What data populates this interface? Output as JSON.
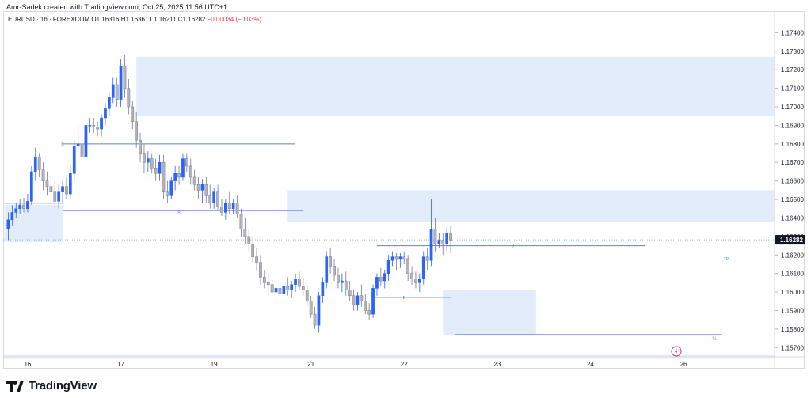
{
  "attribution": "Amr-Sadek created with TradingView.com, Oct 25, 2025 11:56 UTC+1",
  "legend": {
    "symbol": "EURUSD · 1h · FOREXCOM",
    "open": "O1.16316",
    "high": "H1.16361",
    "low": "L1.16211",
    "close": "C1.16282",
    "change": "−0.00034 (−0.03%)"
  },
  "brand": {
    "name": "TradingView",
    "logo_icon": "tradingview-logo-icon"
  },
  "colors": {
    "bull": "#2962ff",
    "bear": "#b2b5be",
    "zone": "#e3ecfb",
    "line": "#5b7fd6",
    "price_tag": "#131722"
  },
  "chart_data": {
    "type": "candlestick",
    "ylim": [
      1.1565,
      1.175
    ],
    "price_ticks": [
      "1.17400",
      "1.17300",
      "1.17200",
      "1.17100",
      "1.17000",
      "1.16900",
      "1.16800",
      "1.16700",
      "1.16600",
      "1.16500",
      "1.16400",
      "1.16300",
      "1.16200",
      "1.16100",
      "1.16000",
      "1.15900",
      "1.15800",
      "1.15700"
    ],
    "date_ticks": [
      {
        "label": "16",
        "index": 5
      },
      {
        "label": "17",
        "index": 29
      },
      {
        "label": "19",
        "index": 53
      },
      {
        "label": "21",
        "index": 78
      },
      {
        "label": "22",
        "index": 102
      },
      {
        "label": "23",
        "index": 126
      },
      {
        "label": "24",
        "index": 150
      },
      {
        "label": "26",
        "index": 174
      }
    ],
    "current_price": "1.16282",
    "annotations": [
      {
        "text": "B",
        "index": 14,
        "price": 1.168
      },
      {
        "text": "B",
        "index": 44,
        "price": 1.1643
      },
      {
        "text": "B",
        "index": 102,
        "price": 1.1597
      },
      {
        "text": "B",
        "index": 130,
        "price": 1.1625
      },
      {
        "text": "SL",
        "index": 182,
        "price": 1.1575
      },
      {
        "text": "TP",
        "index": 185,
        "price": 1.1618
      }
    ],
    "zones": [
      {
        "x0": -1,
        "x1": 14,
        "y0": 1.1647,
        "y1": 1.1627
      },
      {
        "x0": 33,
        "x1": 201,
        "y0": 1.1727,
        "y1": 1.1695
      },
      {
        "x0": 72,
        "x1": 201,
        "y0": 1.1655,
        "y1": 1.1638
      },
      {
        "x0": 112,
        "x1": 136,
        "y0": 1.1601,
        "y1": 1.1577
      },
      {
        "x0": -1,
        "x1": 201,
        "y0": 1.1566,
        "y1": 1.1564
      }
    ],
    "levels": [
      {
        "x0": 14,
        "x1": 74,
        "y": 1.168
      },
      {
        "x0": -1,
        "x1": 14,
        "y": 1.1648
      },
      {
        "x0": 14,
        "x1": 76,
        "y": 1.1644
      },
      {
        "x0": 94,
        "x1": 114,
        "y": 1.1597
      },
      {
        "x0": 95,
        "x1": 164,
        "y": 1.1625
      },
      {
        "x0": 115,
        "x1": 184,
        "y": 1.1577
      }
    ],
    "ohlc": [
      [
        1.1634,
        1.1643,
        1.1628,
        1.1639
      ],
      [
        1.1639,
        1.1647,
        1.1636,
        1.1643
      ],
      [
        1.1643,
        1.1648,
        1.164,
        1.1645
      ],
      [
        1.1645,
        1.165,
        1.1642,
        1.1647
      ],
      [
        1.1647,
        1.1651,
        1.1643,
        1.1645
      ],
      [
        1.1645,
        1.1653,
        1.1643,
        1.1649
      ],
      [
        1.1649,
        1.1668,
        1.1647,
        1.1665
      ],
      [
        1.1665,
        1.1678,
        1.166,
        1.1673
      ],
      [
        1.1673,
        1.1675,
        1.1662,
        1.1666
      ],
      [
        1.1666,
        1.167,
        1.1655,
        1.166
      ],
      [
        1.166,
        1.1665,
        1.1652,
        1.1657
      ],
      [
        1.1657,
        1.1664,
        1.1649,
        1.1654
      ],
      [
        1.1654,
        1.166,
        1.1645,
        1.1649
      ],
      [
        1.1649,
        1.1658,
        1.1645,
        1.1654
      ],
      [
        1.1654,
        1.166,
        1.1648,
        1.1657
      ],
      [
        1.1657,
        1.1662,
        1.165,
        1.1653
      ],
      [
        1.1653,
        1.1668,
        1.165,
        1.1664
      ],
      [
        1.1664,
        1.1682,
        1.166,
        1.1679
      ],
      [
        1.1679,
        1.169,
        1.167,
        1.168
      ],
      [
        1.168,
        1.1688,
        1.167,
        1.1673
      ],
      [
        1.1673,
        1.1694,
        1.167,
        1.169
      ],
      [
        1.169,
        1.1694,
        1.1686,
        1.169
      ],
      [
        1.169,
        1.1694,
        1.1686,
        1.1689
      ],
      [
        1.1689,
        1.1692,
        1.1684,
        1.1688
      ],
      [
        1.1688,
        1.1696,
        1.1684,
        1.1694
      ],
      [
        1.1694,
        1.1702,
        1.169,
        1.1699
      ],
      [
        1.1699,
        1.1708,
        1.1695,
        1.1705
      ],
      [
        1.1705,
        1.1716,
        1.1702,
        1.1712
      ],
      [
        1.1712,
        1.1716,
        1.17,
        1.1704
      ],
      [
        1.1704,
        1.1726,
        1.17,
        1.1722
      ],
      [
        1.1722,
        1.1728,
        1.1705,
        1.171
      ],
      [
        1.171,
        1.1715,
        1.1696,
        1.17
      ],
      [
        1.17,
        1.1703,
        1.1688,
        1.1692
      ],
      [
        1.1692,
        1.1697,
        1.1678,
        1.1682
      ],
      [
        1.1682,
        1.1686,
        1.167,
        1.1675
      ],
      [
        1.1675,
        1.168,
        1.1664,
        1.167
      ],
      [
        1.167,
        1.1676,
        1.1665,
        1.1672
      ],
      [
        1.1672,
        1.1675,
        1.1664,
        1.1667
      ],
      [
        1.1667,
        1.1672,
        1.166,
        1.1664
      ],
      [
        1.1664,
        1.1674,
        1.166,
        1.167
      ],
      [
        1.167,
        1.1674,
        1.165,
        1.1654
      ],
      [
        1.1654,
        1.166,
        1.1648,
        1.1652
      ],
      [
        1.1652,
        1.1662,
        1.165,
        1.166
      ],
      [
        1.166,
        1.1668,
        1.1655,
        1.1664
      ],
      [
        1.1664,
        1.1668,
        1.1658,
        1.1662
      ],
      [
        1.1662,
        1.1675,
        1.166,
        1.1672
      ],
      [
        1.1672,
        1.1675,
        1.1665,
        1.1668
      ],
      [
        1.1668,
        1.1672,
        1.1658,
        1.1662
      ],
      [
        1.1662,
        1.1666,
        1.1655,
        1.1658
      ],
      [
        1.1658,
        1.1662,
        1.165,
        1.1655
      ],
      [
        1.1655,
        1.1661,
        1.1648,
        1.1658
      ],
      [
        1.1658,
        1.1662,
        1.1648,
        1.1652
      ],
      [
        1.1652,
        1.1658,
        1.1645,
        1.1648
      ],
      [
        1.1648,
        1.1656,
        1.1645,
        1.1654
      ],
      [
        1.1654,
        1.1658,
        1.1644,
        1.1646
      ],
      [
        1.1646,
        1.165,
        1.1641,
        1.1643
      ],
      [
        1.1643,
        1.165,
        1.1639,
        1.1648
      ],
      [
        1.1648,
        1.1654,
        1.1642,
        1.1645
      ],
      [
        1.1645,
        1.165,
        1.1642,
        1.1648
      ],
      [
        1.1648,
        1.1652,
        1.164,
        1.1642
      ],
      [
        1.1642,
        1.1645,
        1.163,
        1.1634
      ],
      [
        1.1634,
        1.164,
        1.1626,
        1.163
      ],
      [
        1.163,
        1.1634,
        1.1622,
        1.1626
      ],
      [
        1.1626,
        1.163,
        1.1616,
        1.1619
      ],
      [
        1.1619,
        1.1624,
        1.1612,
        1.1616
      ],
      [
        1.1616,
        1.162,
        1.1604,
        1.1608
      ],
      [
        1.1608,
        1.1612,
        1.1602,
        1.1605
      ],
      [
        1.1605,
        1.161,
        1.1598,
        1.1604
      ],
      [
        1.1604,
        1.1608,
        1.1598,
        1.16
      ],
      [
        1.16,
        1.1604,
        1.1596,
        1.1602
      ],
      [
        1.1602,
        1.1606,
        1.1596,
        1.1599
      ],
      [
        1.1599,
        1.1605,
        1.1597,
        1.1603
      ],
      [
        1.1603,
        1.1608,
        1.1598,
        1.1601
      ],
      [
        1.1601,
        1.1606,
        1.1597,
        1.1604
      ],
      [
        1.1604,
        1.161,
        1.16,
        1.1607
      ],
      [
        1.1607,
        1.1611,
        1.1601,
        1.1603
      ],
      [
        1.1603,
        1.1608,
        1.1598,
        1.1601
      ],
      [
        1.1601,
        1.1604,
        1.1592,
        1.1595
      ],
      [
        1.1595,
        1.1598,
        1.1586,
        1.1588
      ],
      [
        1.1588,
        1.1592,
        1.158,
        1.1582
      ],
      [
        1.1582,
        1.16,
        1.1578,
        1.1598
      ],
      [
        1.1598,
        1.1608,
        1.1594,
        1.1605
      ],
      [
        1.1605,
        1.1622,
        1.1602,
        1.1619
      ],
      [
        1.1619,
        1.1624,
        1.161,
        1.1614
      ],
      [
        1.1614,
        1.1618,
        1.1606,
        1.1609
      ],
      [
        1.1609,
        1.1613,
        1.1602,
        1.1605
      ],
      [
        1.1605,
        1.161,
        1.16,
        1.1606
      ],
      [
        1.1606,
        1.1611,
        1.1598,
        1.1601
      ],
      [
        1.1601,
        1.1606,
        1.1595,
        1.1598
      ],
      [
        1.1598,
        1.1601,
        1.159,
        1.1593
      ],
      [
        1.1593,
        1.16,
        1.159,
        1.1598
      ],
      [
        1.1598,
        1.1604,
        1.1592,
        1.1595
      ],
      [
        1.1595,
        1.1599,
        1.1588,
        1.159
      ],
      [
        1.159,
        1.1594,
        1.1585,
        1.1588
      ],
      [
        1.1588,
        1.1604,
        1.1586,
        1.1602
      ],
      [
        1.1602,
        1.161,
        1.1598,
        1.1608
      ],
      [
        1.1608,
        1.1613,
        1.1603,
        1.1606
      ],
      [
        1.1606,
        1.1612,
        1.1602,
        1.161
      ],
      [
        1.161,
        1.162,
        1.1606,
        1.1617
      ],
      [
        1.1617,
        1.1622,
        1.1614,
        1.1619
      ],
      [
        1.1619,
        1.1621,
        1.1612,
        1.1618
      ],
      [
        1.1618,
        1.1621,
        1.1613,
        1.1619
      ],
      [
        1.1619,
        1.1622,
        1.1615,
        1.1618
      ],
      [
        1.1618,
        1.162,
        1.1606,
        1.161
      ],
      [
        1.161,
        1.1614,
        1.1604,
        1.1607
      ],
      [
        1.1607,
        1.1611,
        1.1602,
        1.1605
      ],
      [
        1.1605,
        1.161,
        1.16,
        1.1607
      ],
      [
        1.1607,
        1.1622,
        1.1604,
        1.1619
      ],
      [
        1.1619,
        1.1624,
        1.1612,
        1.1617
      ],
      [
        1.1617,
        1.165,
        1.1614,
        1.1634
      ],
      [
        1.1634,
        1.164,
        1.1622,
        1.1626
      ],
      [
        1.1626,
        1.1632,
        1.1624,
        1.1628
      ],
      [
        1.1628,
        1.1632,
        1.162,
        1.1626
      ],
      [
        1.1626,
        1.1635,
        1.1622,
        1.1632
      ],
      [
        1.1632,
        1.1636,
        1.1621,
        1.1628
      ]
    ]
  }
}
